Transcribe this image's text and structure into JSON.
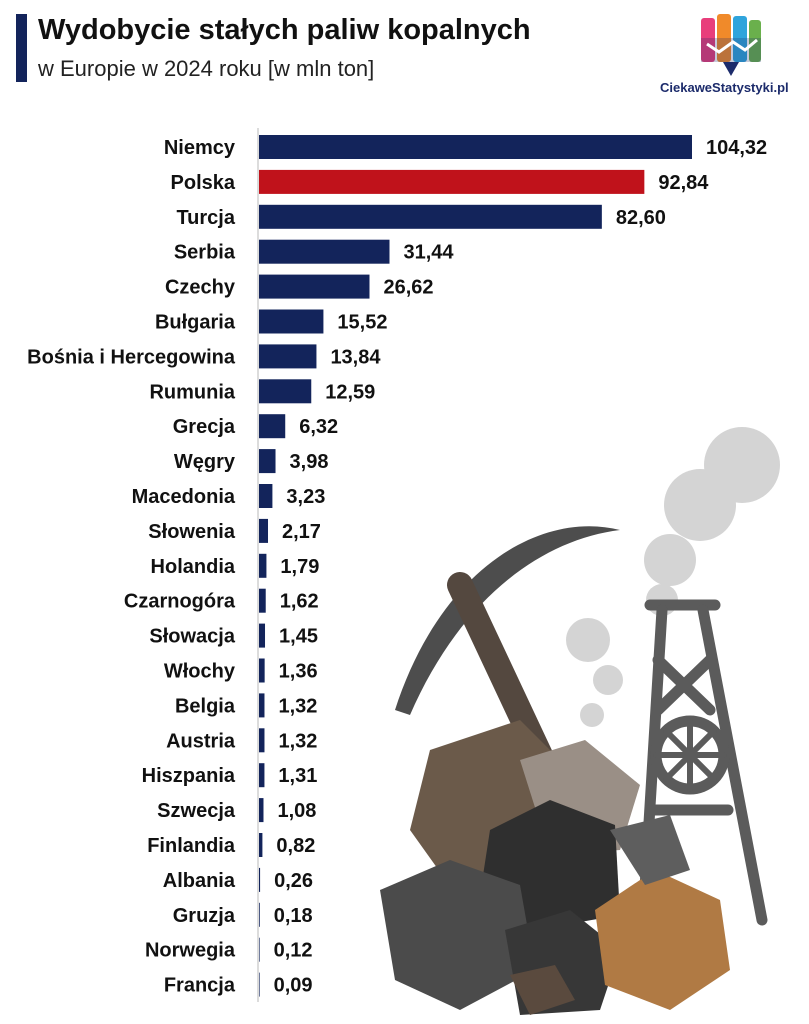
{
  "header": {
    "title": "Wydobycie stałych paliw kopalnych",
    "subtitle": "w Europie w 2024 roku [w mln ton]"
  },
  "brand": {
    "name": "CiekaweStatystyki.pl"
  },
  "colors": {
    "default_bar": "#13245b",
    "highlight_bar": "#c0121b",
    "title_accent": "#13245b"
  },
  "chart_data": {
    "type": "bar",
    "orientation": "horizontal",
    "title": "Wydobycie stałych paliw kopalnych",
    "subtitle": "w Europie w 2024 roku [w mln ton]",
    "highlight": "Polska",
    "categories": [
      "Niemcy",
      "Polska",
      "Turcja",
      "Serbia",
      "Czechy",
      "Bułgaria",
      "Bośnia i Hercegowina",
      "Rumunia",
      "Grecja",
      "Węgry",
      "Macedonia",
      "Słowenia",
      "Holandia",
      "Czarnogóra",
      "Słowacja",
      "Włochy",
      "Belgia",
      "Austria",
      "Hiszpania",
      "Szwecja",
      "Finlandia",
      "Albania",
      "Gruzja",
      "Norwegia",
      "Francja"
    ],
    "values": [
      104.32,
      92.84,
      82.6,
      31.44,
      26.62,
      15.52,
      13.84,
      12.59,
      6.32,
      3.98,
      3.23,
      2.17,
      1.79,
      1.62,
      1.45,
      1.36,
      1.32,
      1.32,
      1.31,
      1.08,
      0.82,
      0.26,
      0.18,
      0.12,
      0.09
    ],
    "value_labels": [
      "104,32",
      "92,84",
      "82,60",
      "31,44",
      "26,62",
      "15,52",
      "13,84",
      "12,59",
      "6,32",
      "3,98",
      "3,23",
      "2,17",
      "1,79",
      "1,62",
      "1,45",
      "1,36",
      "1,32",
      "1,32",
      "1,31",
      "1,08",
      "0,82",
      "0,26",
      "0,18",
      "0,12",
      "0,09"
    ]
  }
}
